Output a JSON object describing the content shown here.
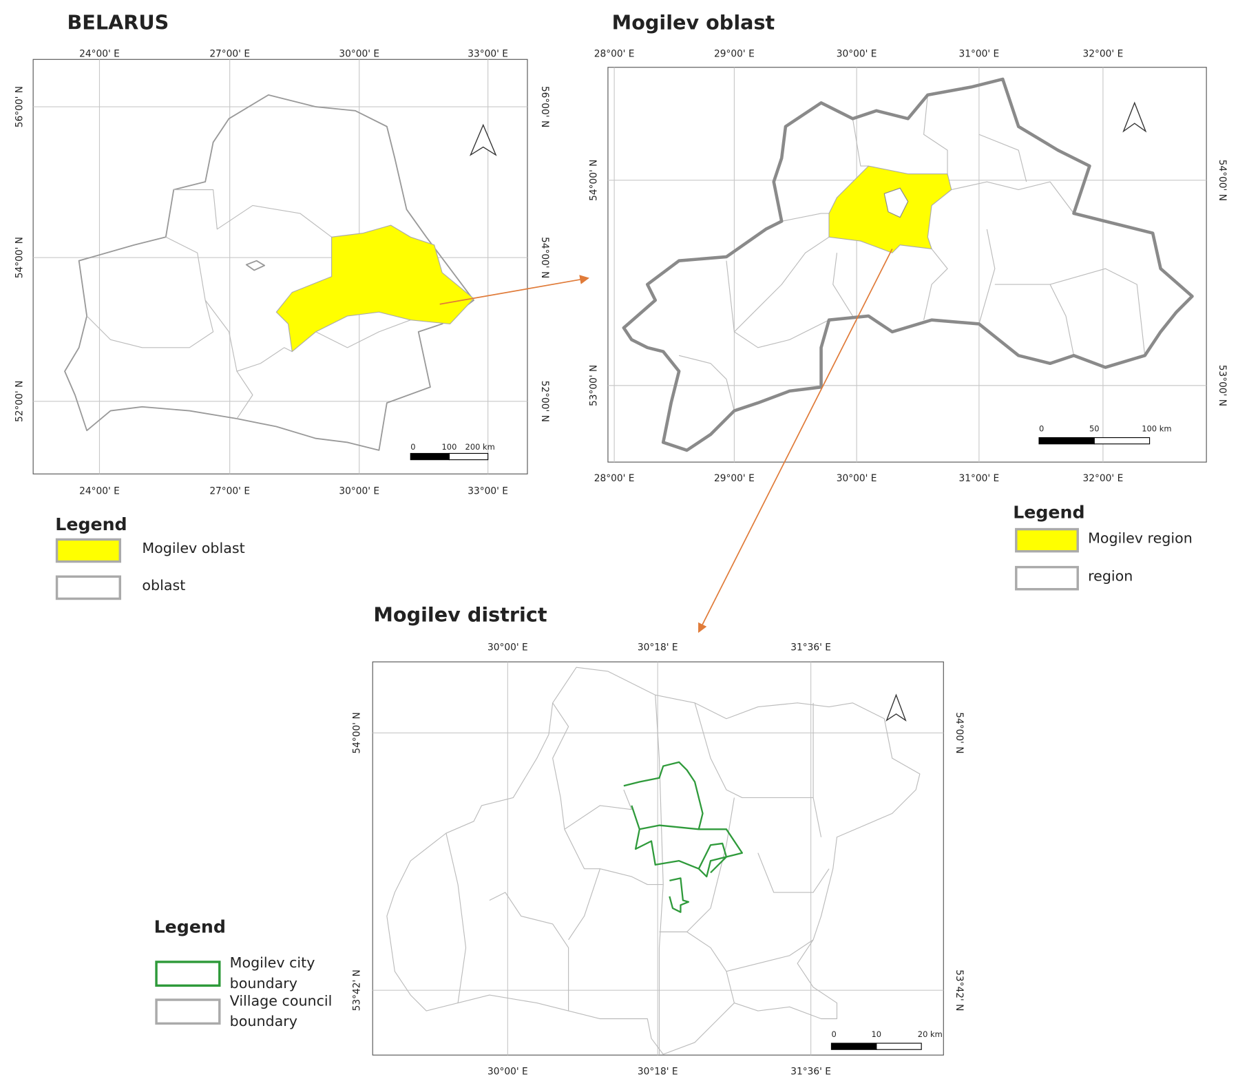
{
  "panels": [
    {
      "title": "BELARUS",
      "x_labels": [
        "24°00' E",
        "27°00' E",
        "30°00' E",
        "33°00' E"
      ],
      "y_labels": [
        "56°00' N",
        "54°00' N",
        "52°00' N"
      ],
      "scale_labels": [
        "0",
        "100",
        "200 km"
      ],
      "legend": {
        "title": "Legend",
        "items": [
          [
            "Mogilev oblast"
          ],
          [
            "oblast"
          ]
        ]
      }
    },
    {
      "title": "Mogilev oblast",
      "x_labels": [
        "28°00' E",
        "29°00' E",
        "30°00' E",
        "31°00' E",
        "32°00' E"
      ],
      "y_labels": [
        "54°00' N",
        "53°00' N"
      ],
      "scale_labels": [
        "0",
        "50",
        "100 km"
      ],
      "legend": {
        "title": "Legend",
        "items": [
          [
            "Mogilev region"
          ],
          [
            "region"
          ]
        ]
      }
    },
    {
      "title": "Mogilev district",
      "x_labels": [
        "30°00' E",
        "30°18' E",
        "31°36' E"
      ],
      "y_labels": [
        "54°00' N",
        "53°42' N"
      ],
      "scale_labels": [
        "0",
        "10",
        "20 km"
      ],
      "legend": {
        "title": "Legend",
        "items": [
          [
            "Mogilev city",
            "boundary"
          ],
          [
            "Village council",
            "boundary"
          ]
        ]
      }
    }
  ]
}
